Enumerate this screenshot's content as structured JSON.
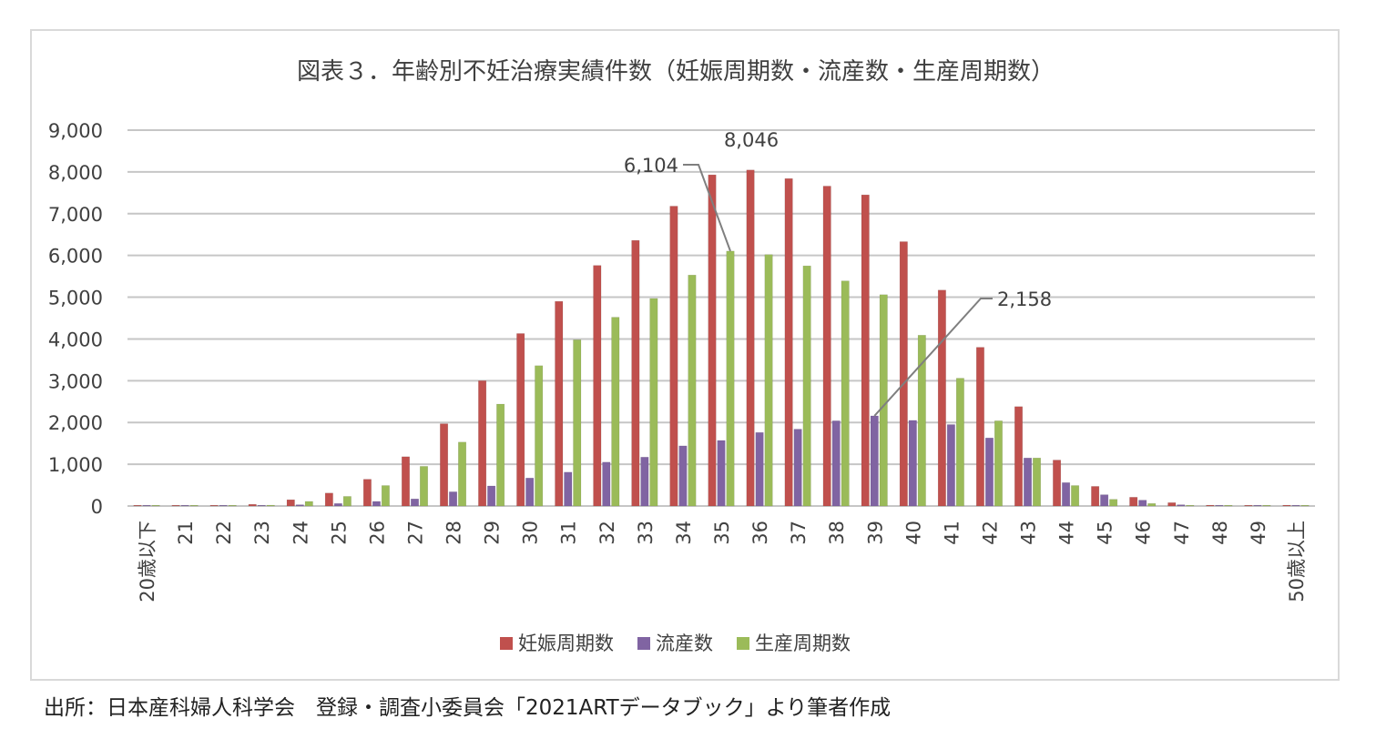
{
  "source_note": "出所：日本産科婦人科学会　登録・調査小委員会「2021ARTデータブック」より筆者作成",
  "chart_data": {
    "type": "bar",
    "title": "図表３．年齢別不妊治療実績件数（妊娠周期数・流産数・生産周期数）",
    "xlabel": "",
    "ylabel": "",
    "ylim": [
      0,
      9000
    ],
    "yticks": [
      "0",
      "1,000",
      "2,000",
      "3,000",
      "4,000",
      "5,000",
      "6,000",
      "7,000",
      "8,000",
      "9,000"
    ],
    "grid": true,
    "legend_position": "bottom",
    "categories": [
      "20歳以下",
      "21",
      "22",
      "23",
      "24",
      "25",
      "26",
      "27",
      "28",
      "29",
      "30",
      "31",
      "32",
      "33",
      "34",
      "35",
      "36",
      "37",
      "38",
      "39",
      "40",
      "41",
      "42",
      "43",
      "44",
      "45",
      "46",
      "47",
      "48",
      "49",
      "50歳以上"
    ],
    "series": [
      {
        "name": "妊娠周期数",
        "color": "#c0504d",
        "values": [
          5,
          5,
          10,
          40,
          150,
          310,
          640,
          1180,
          1970,
          3000,
          4130,
          4900,
          5760,
          6360,
          7180,
          7930,
          8046,
          7840,
          7660,
          7450,
          6330,
          5170,
          3800,
          2380,
          1100,
          470,
          210,
          80,
          20,
          10,
          20
        ]
      },
      {
        "name": "流産数",
        "color": "#8064a2",
        "values": [
          5,
          5,
          5,
          10,
          30,
          60,
          110,
          170,
          340,
          480,
          670,
          810,
          1050,
          1170,
          1440,
          1570,
          1760,
          1840,
          2040,
          2158,
          2050,
          1950,
          1630,
          1150,
          560,
          270,
          140,
          30,
          10,
          10,
          10
        ]
      },
      {
        "name": "生産周期数",
        "color": "#9bbb59",
        "values": [
          0,
          0,
          0,
          20,
          110,
          230,
          490,
          950,
          1530,
          2440,
          3360,
          3980,
          4520,
          4970,
          5530,
          6104,
          6020,
          5750,
          5390,
          5060,
          4090,
          3060,
          2040,
          1150,
          490,
          160,
          60,
          10,
          5,
          5,
          0
        ]
      }
    ],
    "annotations": [
      {
        "label": "8,046",
        "series": "妊娠周期数",
        "category": "36"
      },
      {
        "label": "6,104",
        "series": "生産周期数",
        "category": "35"
      },
      {
        "label": "2,158",
        "series": "流産数",
        "category": "39"
      }
    ]
  }
}
